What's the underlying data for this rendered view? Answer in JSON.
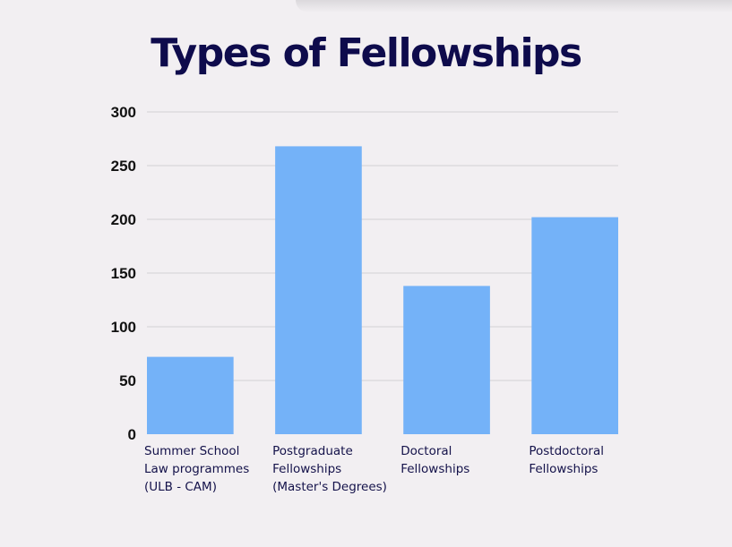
{
  "chart_data": {
    "type": "bar",
    "title": "Types of Fellowships",
    "xlabel": "",
    "ylabel": "",
    "categories": [
      [
        "Summer School",
        "Law programmes",
        "(ULB - CAM)"
      ],
      [
        "Postgraduate",
        "Fellowships",
        "(Master's Degrees)"
      ],
      [
        "Doctoral",
        "Fellowships"
      ],
      [
        "Postdoctoral",
        "Fellowships"
      ]
    ],
    "values": [
      72,
      268,
      138,
      202
    ],
    "ylim": [
      0,
      300
    ],
    "yticks": [
      0,
      50,
      100,
      150,
      200,
      250,
      300
    ],
    "grid": true,
    "legend": "none",
    "bar_color": "#74b2f8",
    "grid_color": "#d3d1d4",
    "title_color": "#0e0b4c"
  }
}
